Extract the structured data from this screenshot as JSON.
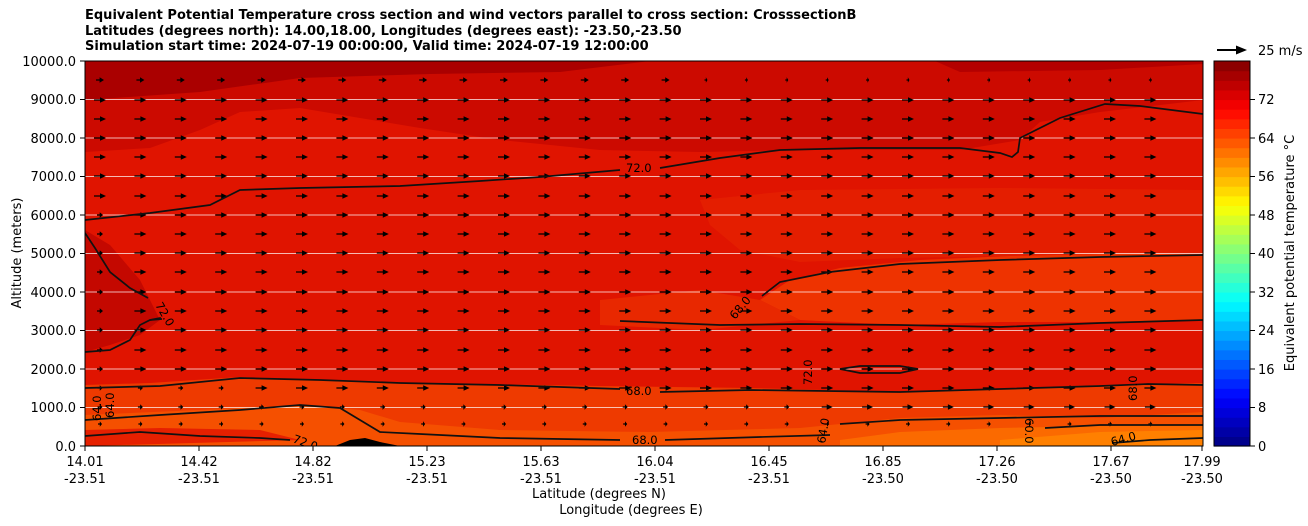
{
  "title_lines": [
    "Equivalent Potential Temperature cross section and wind vectors parallel to cross section: CrosssectionB",
    "Latitudes (degrees north): 14.00,18.00, Longitudes (degrees east): -23.50,-23.50",
    "Simulation start time: 2024-07-19 00:00:00, Valid time: 2024-07-19 12:00:00"
  ],
  "chart_data": {
    "type": "contour-cross-section",
    "title": "Equivalent Potential Temperature cross section and wind vectors parallel to cross section: CrosssectionB",
    "ylabel": "Altitude (meters)",
    "xlabel_lat": "Latitude (degrees N)",
    "xlabel_lon": "Longitude (degrees E)",
    "ylim": [
      0,
      10000
    ],
    "y_ticks": [
      "0.0",
      "1000.0",
      "2000.0",
      "3000.0",
      "4000.0",
      "5000.0",
      "6000.0",
      "7000.0",
      "8000.0",
      "9000.0",
      "10000.0"
    ],
    "x_ticks_lat": [
      "14.01",
      "14.42",
      "14.82",
      "15.23",
      "15.63",
      "16.04",
      "16.45",
      "16.85",
      "17.26",
      "17.67",
      "17.99"
    ],
    "x_ticks_lon": [
      "-23.51",
      "-23.51",
      "-23.51",
      "-23.51",
      "-23.51",
      "-23.51",
      "-23.51",
      "-23.50",
      "-23.50",
      "-23.50",
      "-23.50"
    ],
    "colorbar": {
      "label": "Equivalent potential temperature °C",
      "ticks": [
        "0",
        "8",
        "16",
        "24",
        "32",
        "40",
        "48",
        "56",
        "64",
        "72"
      ],
      "range": [
        0,
        80
      ]
    },
    "contour_labels": [
      "72.0",
      "72.0",
      "68.0",
      "72.0",
      "68.0",
      "68.0",
      "64.0",
      "64.0",
      "72.0",
      "68.0",
      "64.0",
      "60.0",
      "64.0"
    ],
    "quiver_key": "25 m/s"
  }
}
